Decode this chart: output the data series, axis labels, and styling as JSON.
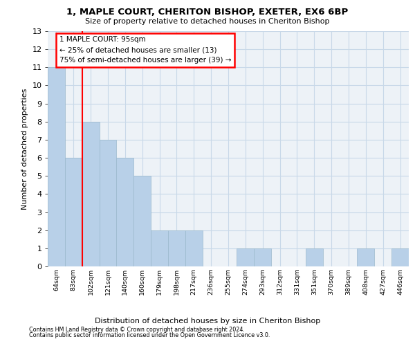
{
  "title_line1": "1, MAPLE COURT, CHERITON BISHOP, EXETER, EX6 6BP",
  "title_line2": "Size of property relative to detached houses in Cheriton Bishop",
  "xlabel": "Distribution of detached houses by size in Cheriton Bishop",
  "ylabel": "Number of detached properties",
  "categories": [
    "64sqm",
    "83sqm",
    "102sqm",
    "121sqm",
    "140sqm",
    "160sqm",
    "179sqm",
    "198sqm",
    "217sqm",
    "236sqm",
    "255sqm",
    "274sqm",
    "293sqm",
    "312sqm",
    "331sqm",
    "351sqm",
    "370sqm",
    "389sqm",
    "408sqm",
    "427sqm",
    "446sqm"
  ],
  "values": [
    11,
    6,
    8,
    7,
    6,
    5,
    2,
    2,
    2,
    0,
    0,
    1,
    1,
    0,
    0,
    1,
    0,
    0,
    1,
    0,
    1
  ],
  "bar_color": "#b8d0e8",
  "bar_edge_color": "#9ab8cc",
  "ylim": [
    0,
    13
  ],
  "yticks": [
    0,
    1,
    2,
    3,
    4,
    5,
    6,
    7,
    8,
    9,
    10,
    11,
    12,
    13
  ],
  "annotation_text": "1 MAPLE COURT: 95sqm\n← 25% of detached houses are smaller (13)\n75% of semi-detached houses are larger (39) →",
  "footer_line1": "Contains HM Land Registry data © Crown copyright and database right 2024.",
  "footer_line2": "Contains public sector information licensed under the Open Government Licence v3.0.",
  "grid_color": "#c8d8e8",
  "bg_color": "#edf2f7"
}
